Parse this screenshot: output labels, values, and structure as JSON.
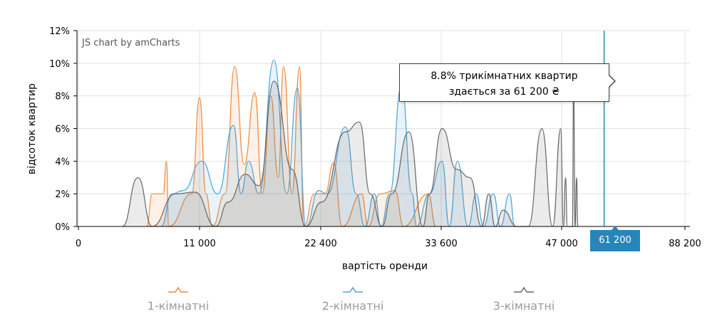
{
  "credit": "JS chart by amCharts",
  "tooltip": {
    "line1": "8.8% трикімнатних квартир",
    "line2": "здається за 61 200 ₴"
  },
  "cursor_label": "61 200",
  "legend": [
    {
      "label": "1-кімнатні",
      "color": "#f0883a"
    },
    {
      "label": "2-кімнатні",
      "color": "#4fa3d8"
    },
    {
      "label": "3-кімнатні",
      "color": "#666666"
    }
  ],
  "chart_data": {
    "type": "area",
    "xlabel": "вартість оренди",
    "ylabel": "відсоток квартир",
    "x_ticks": [
      {
        "value": 0,
        "label": "0"
      },
      {
        "value": 11000,
        "label": "11 000"
      },
      {
        "value": 22400,
        "label": "22 400"
      },
      {
        "value": 33600,
        "label": "33 600"
      },
      {
        "value": 47000,
        "label": "47 000"
      },
      {
        "value": 88200,
        "label": "88 200"
      }
    ],
    "y_ticks": [
      "0%",
      "2%",
      "4%",
      "6%",
      "8%",
      "10%",
      "12%"
    ],
    "ylim": [
      0,
      12
    ],
    "grid": true,
    "legend_position": "bottom",
    "cursor": {
      "x": 61200,
      "value": 8.8,
      "series": "3-кімнатні"
    },
    "series": [
      {
        "name": "1-кімнатні",
        "color": "#f0883a",
        "points": [
          [
            6200,
            0
          ],
          [
            6700,
            2.0
          ],
          [
            7300,
            2.0
          ],
          [
            7700,
            2.0
          ],
          [
            8000,
            4.0
          ],
          [
            8200,
            0
          ],
          [
            10300,
            2.0
          ],
          [
            11000,
            7.9
          ],
          [
            11600,
            2.0
          ],
          [
            12200,
            0
          ],
          [
            13400,
            2.0
          ],
          [
            14300,
            9.8
          ],
          [
            15200,
            3.8
          ],
          [
            16200,
            8.2
          ],
          [
            16900,
            2.0
          ],
          [
            17700,
            8.0
          ],
          [
            18400,
            3.0
          ],
          [
            18900,
            9.8
          ],
          [
            19700,
            2.0
          ],
          [
            20400,
            9.8
          ],
          [
            20800,
            0
          ],
          [
            21800,
            2.0
          ],
          [
            22800,
            2.0
          ],
          [
            23600,
            3.9
          ],
          [
            24400,
            0
          ],
          [
            26200,
            2.0
          ],
          [
            26800,
            0
          ],
          [
            27900,
            2.0
          ],
          [
            29300,
            2.2
          ],
          [
            30100,
            0
          ],
          [
            32400,
            2.0
          ],
          [
            33100,
            0
          ]
        ]
      },
      {
        "name": "2-кімнатні",
        "color": "#4fa3d8",
        "points": [
          [
            7500,
            0
          ],
          [
            8500,
            2.0
          ],
          [
            9500,
            2.2
          ],
          [
            11200,
            4.0
          ],
          [
            12700,
            2.0
          ],
          [
            14200,
            6.2
          ],
          [
            14900,
            2.0
          ],
          [
            15600,
            4.0
          ],
          [
            16600,
            2.0
          ],
          [
            18000,
            10.2
          ],
          [
            19200,
            2.0
          ],
          [
            20200,
            8.5
          ],
          [
            21000,
            0
          ],
          [
            22200,
            2.2
          ],
          [
            23000,
            2.0
          ],
          [
            24700,
            6.1
          ],
          [
            25700,
            2.0
          ],
          [
            26500,
            0
          ],
          [
            27400,
            2.0
          ],
          [
            28000,
            0
          ],
          [
            28800,
            2.0
          ],
          [
            29900,
            8.6
          ],
          [
            30900,
            2.0
          ],
          [
            31300,
            0
          ],
          [
            32500,
            2.0
          ],
          [
            33700,
            4.0
          ],
          [
            34500,
            0
          ],
          [
            35400,
            4.0
          ],
          [
            36600,
            0
          ],
          [
            37500,
            2.0
          ],
          [
            38300,
            0
          ],
          [
            39400,
            2.0
          ],
          [
            40200,
            0
          ],
          [
            41200,
            2.0
          ],
          [
            41800,
            0
          ]
        ]
      },
      {
        "name": "3-кімнатні",
        "color": "#666666",
        "points": [
          [
            4000,
            0
          ],
          [
            5400,
            3.0
          ],
          [
            6700,
            0
          ],
          [
            8800,
            2.0
          ],
          [
            10600,
            2.1
          ],
          [
            12500,
            0
          ],
          [
            13700,
            1.5
          ],
          [
            15300,
            3.2
          ],
          [
            16600,
            2.5
          ],
          [
            18000,
            8.9
          ],
          [
            19700,
            3.5
          ],
          [
            21000,
            0
          ],
          [
            22500,
            1.5
          ],
          [
            24700,
            5.8
          ],
          [
            26000,
            6.4
          ],
          [
            27000,
            2.0
          ],
          [
            28100,
            0
          ],
          [
            29000,
            2.0
          ],
          [
            30600,
            5.8
          ],
          [
            31900,
            0
          ],
          [
            32500,
            2.0
          ],
          [
            33700,
            6.0
          ],
          [
            35300,
            3.5
          ],
          [
            36800,
            3.0
          ],
          [
            38100,
            0
          ],
          [
            38900,
            2.0
          ],
          [
            39600,
            0
          ],
          [
            40500,
            1.0
          ],
          [
            42000,
            0
          ],
          [
            43300,
            0
          ],
          [
            44800,
            6.0
          ],
          [
            46000,
            0
          ],
          [
            46900,
            6.0
          ],
          [
            47600,
            0
          ],
          [
            48300,
            3.0
          ],
          [
            48900,
            0
          ],
          [
            50600,
            0
          ],
          [
            51000,
            9.0
          ],
          [
            51500,
            0
          ],
          [
            52000,
            3.0
          ],
          [
            52400,
            0
          ]
        ]
      }
    ]
  }
}
